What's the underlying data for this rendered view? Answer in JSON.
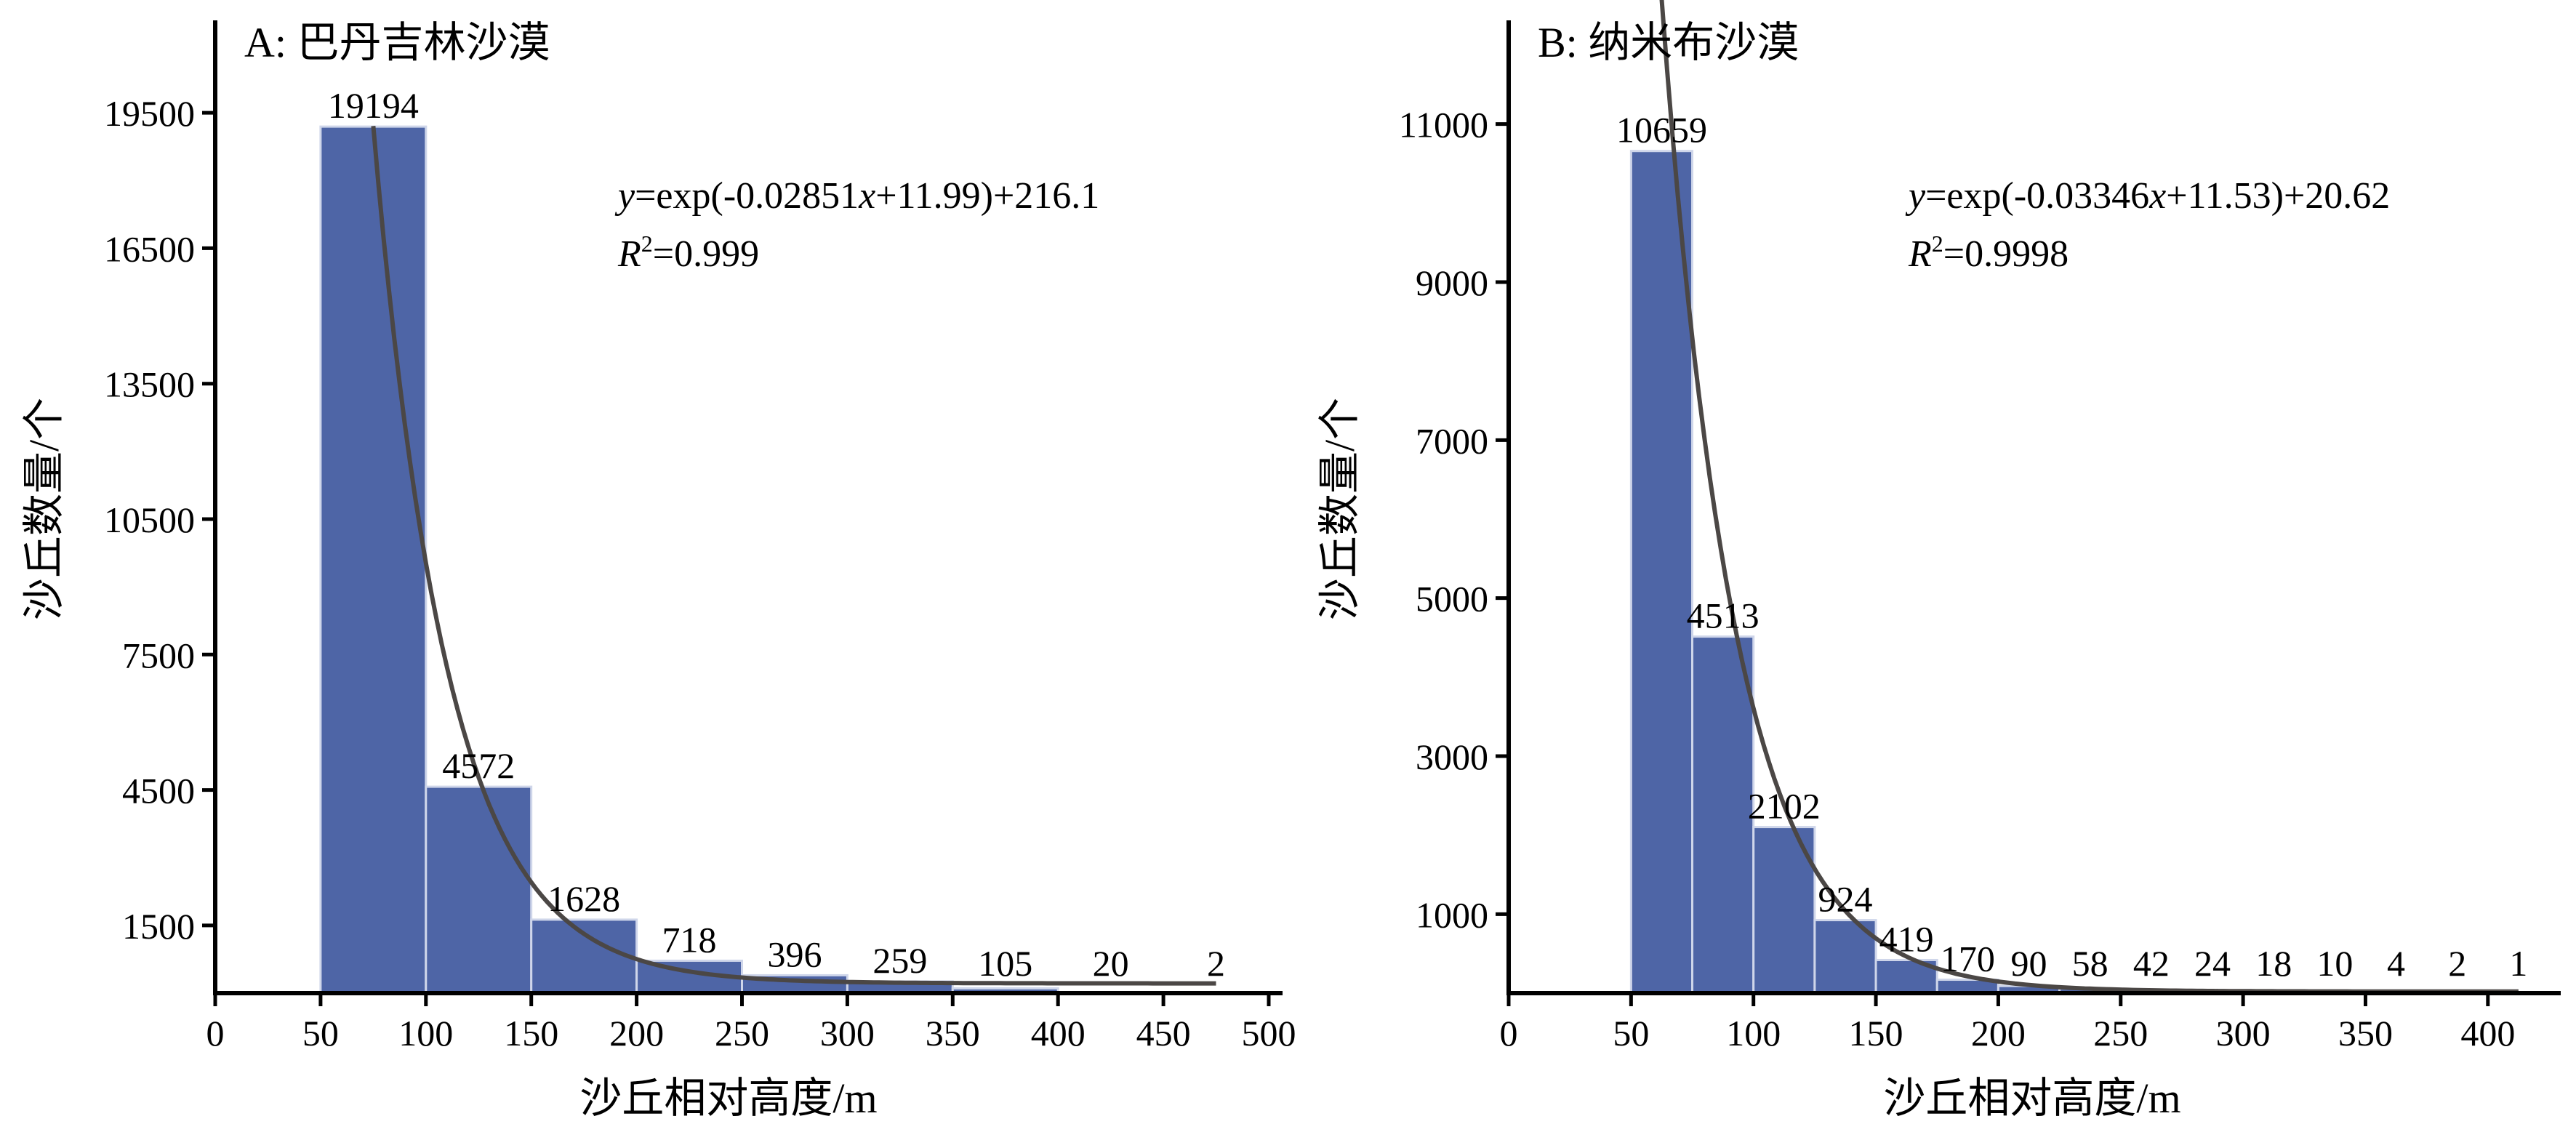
{
  "chart_data": [
    {
      "type": "bar",
      "panel_title": "A: 巴丹吉林沙漠",
      "bin_edges": [
        50,
        100,
        150,
        200,
        250,
        300,
        350,
        400,
        450,
        500
      ],
      "values": [
        19194,
        4572,
        1628,
        718,
        396,
        259,
        105,
        20,
        2
      ],
      "xlabel": "沙丘相对高度/m",
      "ylabel": "沙丘数量/个",
      "xlim": [
        0,
        500
      ],
      "ylim": [
        0,
        21000
      ],
      "xticks": [
        0,
        50,
        100,
        150,
        200,
        250,
        300,
        350,
        400,
        450,
        500
      ],
      "yticks": [
        1500,
        4500,
        7500,
        10500,
        13500,
        16500,
        19500
      ],
      "fit": {
        "a": -0.02851,
        "b": 11.99,
        "c": 216.1,
        "x_range": [
          75,
          475
        ],
        "equation_y": "y",
        "equation_rest": "=exp(-0.02851",
        "equation_x": "x",
        "equation_tail": "+11.99)+216.1",
        "r_label": "R",
        "r_sup": "2",
        "r_value": "=0.999"
      },
      "bar_color": "#4e65a6",
      "bar_edge_color": "#cfd6ea",
      "fit_color": "#4b4745",
      "grid": false
    },
    {
      "type": "bar",
      "panel_title": "B: 纳米布沙漠",
      "bin_edges": [
        50,
        75,
        100,
        125,
        150,
        175,
        200,
        225,
        250,
        275,
        300,
        325,
        350,
        375,
        400,
        425
      ],
      "values": [
        10659,
        4513,
        2102,
        924,
        419,
        170,
        90,
        58,
        42,
        24,
        18,
        10,
        4,
        2,
        1
      ],
      "xlabel": "沙丘相对高度/m",
      "ylabel": "沙丘数量/个",
      "xlim": [
        0,
        425
      ],
      "ylim": [
        0,
        12000
      ],
      "xticks": [
        0,
        50,
        100,
        150,
        200,
        250,
        300,
        350,
        400
      ],
      "yticks": [
        1000,
        3000,
        5000,
        7000,
        9000,
        11000
      ],
      "fit": {
        "a": -0.03346,
        "b": 11.53,
        "c": 20.62,
        "x_range": [
          62.5,
          412.5
        ],
        "equation_y": "y",
        "equation_rest": "=exp(-0.03346",
        "equation_x": "x",
        "equation_tail": "+11.53)+20.62",
        "r_label": "R",
        "r_sup": "2",
        "r_value": "=0.9998"
      },
      "bar_color": "#4e65a6",
      "bar_edge_color": "#cfd6ea",
      "fit_color": "#4b4745",
      "grid": false
    }
  ]
}
